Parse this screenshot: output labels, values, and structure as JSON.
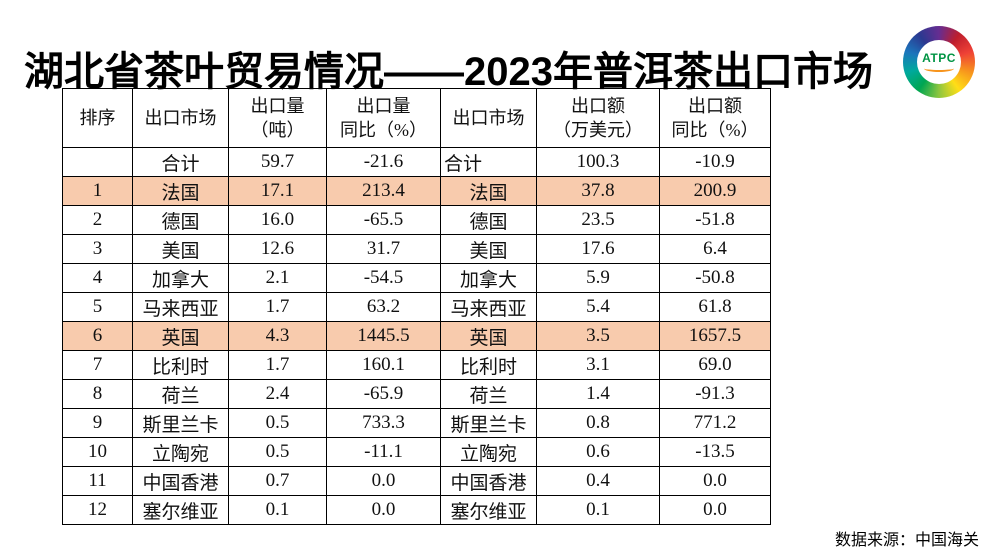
{
  "title": "湖北省茶叶贸易情况——2023年普洱茶出口市场",
  "logo": {
    "text": "ATPC"
  },
  "colors": {
    "highlight": "#F8CBAD"
  },
  "table": {
    "column_keys": [
      "rank",
      "market",
      "volume",
      "volume_yoy",
      "market2",
      "value",
      "value_yoy"
    ],
    "headers": [
      "排序",
      "出口市场",
      "出口量\n（吨）",
      "出口量\n同比（%）",
      "出口市场",
      "出口额\n（万美元）",
      "出口额\n同比（%）"
    ],
    "rows": [
      {
        "rank": "",
        "market": "合计",
        "volume": "59.7",
        "volume_yoy": "-21.6",
        "market2": "合计",
        "value": "100.3",
        "value_yoy": "-10.9",
        "highlight": false,
        "total": true
      },
      {
        "rank": "1",
        "market": "法国",
        "volume": "17.1",
        "volume_yoy": "213.4",
        "market2": "法国",
        "value": "37.8",
        "value_yoy": "200.9",
        "highlight": true,
        "total": false
      },
      {
        "rank": "2",
        "market": "德国",
        "volume": "16.0",
        "volume_yoy": "-65.5",
        "market2": "德国",
        "value": "23.5",
        "value_yoy": "-51.8",
        "highlight": false,
        "total": false
      },
      {
        "rank": "3",
        "market": "美国",
        "volume": "12.6",
        "volume_yoy": "31.7",
        "market2": "美国",
        "value": "17.6",
        "value_yoy": "6.4",
        "highlight": false,
        "total": false
      },
      {
        "rank": "4",
        "market": "加拿大",
        "volume": "2.1",
        "volume_yoy": "-54.5",
        "market2": "加拿大",
        "value": "5.9",
        "value_yoy": "-50.8",
        "highlight": false,
        "total": false
      },
      {
        "rank": "5",
        "market": "马来西亚",
        "volume": "1.7",
        "volume_yoy": "63.2",
        "market2": "马来西亚",
        "value": "5.4",
        "value_yoy": "61.8",
        "highlight": false,
        "total": false
      },
      {
        "rank": "6",
        "market": "英国",
        "volume": "4.3",
        "volume_yoy": "1445.5",
        "market2": "英国",
        "value": "3.5",
        "value_yoy": "1657.5",
        "highlight": true,
        "total": false
      },
      {
        "rank": "7",
        "market": "比利时",
        "volume": "1.7",
        "volume_yoy": "160.1",
        "market2": "比利时",
        "value": "3.1",
        "value_yoy": "69.0",
        "highlight": false,
        "total": false
      },
      {
        "rank": "8",
        "market": "荷兰",
        "volume": "2.4",
        "volume_yoy": "-65.9",
        "market2": "荷兰",
        "value": "1.4",
        "value_yoy": "-91.3",
        "highlight": false,
        "total": false
      },
      {
        "rank": "9",
        "market": "斯里兰卡",
        "volume": "0.5",
        "volume_yoy": "733.3",
        "market2": "斯里兰卡",
        "value": "0.8",
        "value_yoy": "771.2",
        "highlight": false,
        "total": false
      },
      {
        "rank": "10",
        "market": "立陶宛",
        "volume": "0.5",
        "volume_yoy": "-11.1",
        "market2": "立陶宛",
        "value": "0.6",
        "value_yoy": "-13.5",
        "highlight": false,
        "total": false
      },
      {
        "rank": "11",
        "market": "中国香港",
        "volume": "0.7",
        "volume_yoy": "0.0",
        "market2": "中国香港",
        "value": "0.4",
        "value_yoy": "0.0",
        "highlight": false,
        "total": false
      },
      {
        "rank": "12",
        "market": "塞尔维亚",
        "volume": "0.1",
        "volume_yoy": "0.0",
        "market2": "塞尔维亚",
        "value": "0.1",
        "value_yoy": "0.0",
        "highlight": false,
        "total": false
      }
    ]
  },
  "footer": {
    "source": "数据来源：中国海关"
  }
}
